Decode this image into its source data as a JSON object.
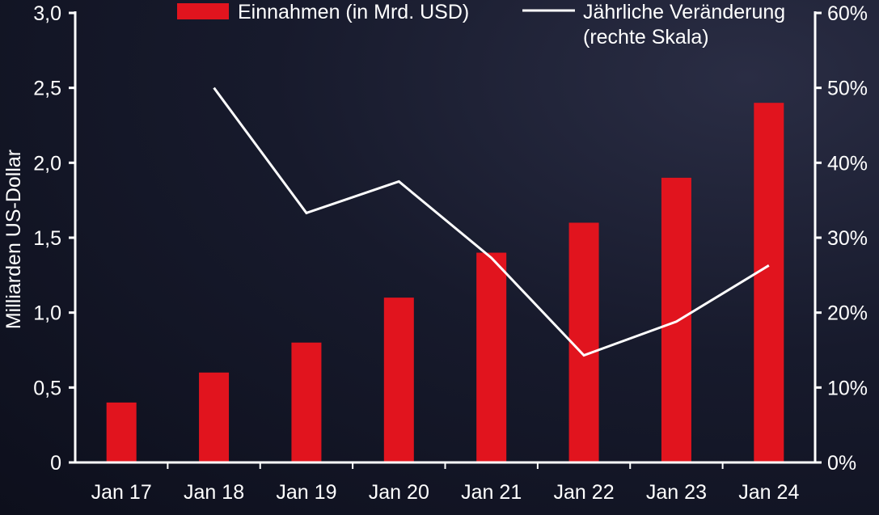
{
  "chart_data": {
    "type": "bar",
    "categories": [
      "Jan 17",
      "Jan 18",
      "Jan 19",
      "Jan 20",
      "Jan 21",
      "Jan 22",
      "Jan 23",
      "Jan 24"
    ],
    "series": [
      {
        "name": "Einnahmen (in Mrd. USD)",
        "type": "bar",
        "axis": "left",
        "color": "#e1141e",
        "values": [
          0.4,
          0.6,
          0.8,
          1.1,
          1.4,
          1.6,
          1.9,
          2.4
        ]
      },
      {
        "name": "Jährliche Veränderung",
        "name_line2": "(rechte Skala)",
        "type": "line",
        "axis": "right",
        "color": "#ffffff",
        "values": [
          null,
          50.0,
          33.3,
          37.5,
          27.3,
          14.3,
          18.8,
          26.3
        ]
      }
    ],
    "ylabel": "Milliarden US-Dollar",
    "ylim": [
      0,
      3.0
    ],
    "y_ticks": [
      "0",
      "0,5",
      "1,0",
      "1,5",
      "2,0",
      "2,5",
      "3,0"
    ],
    "y2lim": [
      0,
      60
    ],
    "y2_ticks": [
      "0%",
      "10%",
      "20%",
      "30%",
      "40%",
      "50%",
      "60%"
    ],
    "legend_position": "top",
    "grid": false
  }
}
